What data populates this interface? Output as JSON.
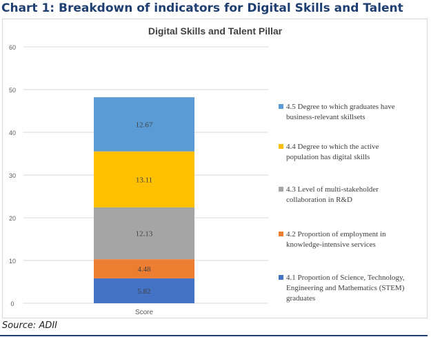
{
  "heading": "Chart 1: Breakdown of indicators for Digital Skills and Talent",
  "source": "Source: ADII",
  "colors": {
    "s41": "#4472c4",
    "s42": "#ed7d31",
    "s43": "#a5a5a5",
    "s44": "#ffc000",
    "s45": "#5b9bd5",
    "grid": "#d9d9d9",
    "text": "#595959"
  },
  "chart_data": {
    "type": "bar",
    "stacked": true,
    "title": "Digital Skills and Talent Pillar",
    "categories": [
      "Score"
    ],
    "xlabel": "",
    "ylabel": "",
    "ylim": [
      0,
      60
    ],
    "yticks": [
      0,
      10,
      20,
      30,
      40,
      50,
      60
    ],
    "grid": true,
    "legend_position": "right",
    "series": [
      {
        "name": "4.1 Proportion of Science, Technology, Engineering and Mathematics (STEM) graduates",
        "values": [
          5.82
        ],
        "label": "5.82",
        "color_key": "s41"
      },
      {
        "name": "4.2 Proportion of employment in knowledge-intensive services",
        "values": [
          4.48
        ],
        "label": "4.48",
        "color_key": "s42"
      },
      {
        "name": "4.3 Level of multi-stakeholder collaboration in R&D",
        "values": [
          12.13
        ],
        "label": "12.13",
        "color_key": "s43"
      },
      {
        "name": "4.4 Degree to which the active population has digital skills",
        "values": [
          13.11
        ],
        "label": "13.11",
        "color_key": "s44"
      },
      {
        "name": "4.5 Degree to which graduates have business-relevant skillsets",
        "values": [
          12.67
        ],
        "label": "12.67",
        "color_key": "s45"
      }
    ],
    "legend": [
      {
        "lines": [
          "4.5 Degree to which graduates have",
          "business-relevant skillsets"
        ],
        "color_key": "s45"
      },
      {
        "lines": [
          "4.4 Degree to which the active",
          "population has digital skills"
        ],
        "color_key": "s44"
      },
      {
        "lines": [
          "4.3 Level of multi-stakeholder",
          "collaboration in R&D"
        ],
        "color_key": "s43"
      },
      {
        "lines": [
          "4.2 Proportion of employment in",
          "knowledge-intensive services"
        ],
        "color_key": "s42"
      },
      {
        "lines": [
          "4.1 Proportion of Science, Technology,",
          "Engineering and Mathematics (STEM)",
          "graduates"
        ],
        "color_key": "s41"
      }
    ]
  }
}
